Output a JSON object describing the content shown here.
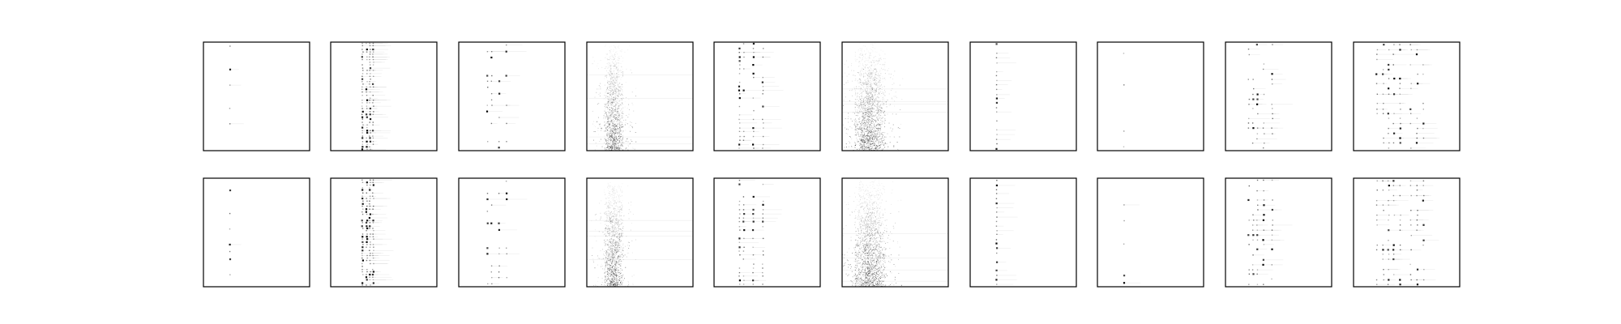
{
  "figure": {
    "rows": 2,
    "cols": 10,
    "background": "#ffffff",
    "frame_color": "#000000",
    "ink_color": "#000000"
  },
  "chart_data": {
    "type": "heatmap",
    "title": "",
    "axes_visible": false,
    "ticks_visible": false,
    "grid": false,
    "legend": "none",
    "colormap": "Greys",
    "panels": [
      {
        "row": 0,
        "col": 0,
        "pattern": "sparse-single-column"
      },
      {
        "row": 0,
        "col": 1,
        "pattern": "dense-multi-column"
      },
      {
        "row": 0,
        "col": 2,
        "pattern": "sparse-columns"
      },
      {
        "row": 0,
        "col": 3,
        "pattern": "diffuse-band"
      },
      {
        "row": 0,
        "col": 4,
        "pattern": "multi-column"
      },
      {
        "row": 0,
        "col": 5,
        "pattern": "diffuse-band-wide"
      },
      {
        "row": 0,
        "col": 6,
        "pattern": "single-column"
      },
      {
        "row": 0,
        "col": 7,
        "pattern": "sparse-single-column"
      },
      {
        "row": 0,
        "col": 8,
        "pattern": "scattered-columns"
      },
      {
        "row": 0,
        "col": 9,
        "pattern": "spread-columns"
      },
      {
        "row": 1,
        "col": 0,
        "pattern": "sparse-single-column"
      },
      {
        "row": 1,
        "col": 1,
        "pattern": "dense-multi-column"
      },
      {
        "row": 1,
        "col": 2,
        "pattern": "sparse-columns"
      },
      {
        "row": 1,
        "col": 3,
        "pattern": "diffuse-band"
      },
      {
        "row": 1,
        "col": 4,
        "pattern": "multi-column"
      },
      {
        "row": 1,
        "col": 5,
        "pattern": "diffuse-band-wide"
      },
      {
        "row": 1,
        "col": 6,
        "pattern": "single-column"
      },
      {
        "row": 1,
        "col": 7,
        "pattern": "sparse-single-column"
      },
      {
        "row": 1,
        "col": 8,
        "pattern": "scattered-columns"
      },
      {
        "row": 1,
        "col": 9,
        "pattern": "spread-columns"
      }
    ]
  }
}
